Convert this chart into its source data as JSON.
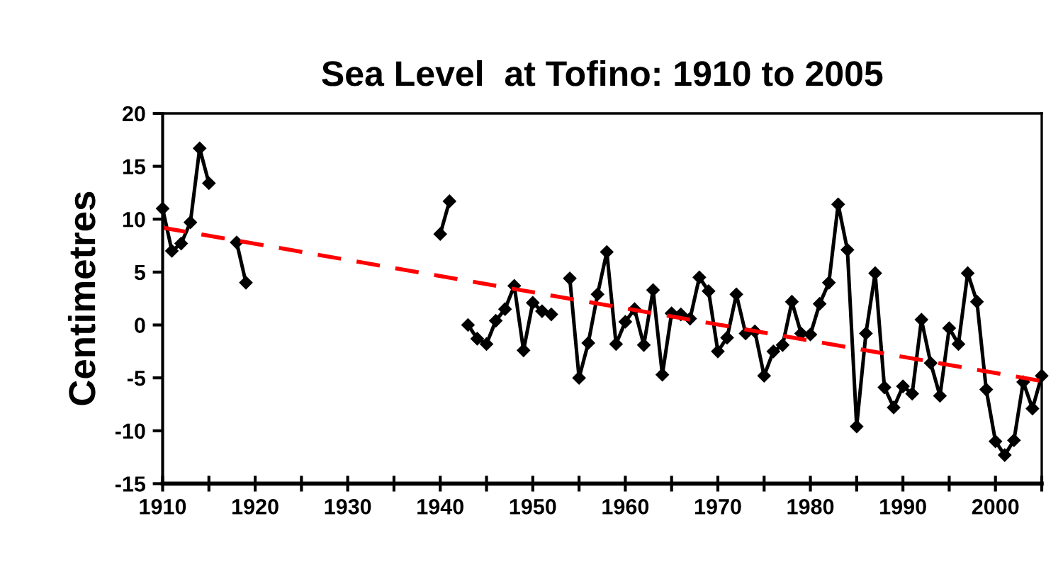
{
  "chart_data": {
    "type": "line",
    "title": "Sea Level  at Tofino: 1910 to 2005",
    "ylabel": "Centimetres",
    "series": [
      {
        "color": "#000000",
        "marker": "diamond",
        "line_style": "solid",
        "x": [
          1910,
          1911,
          1912,
          1913,
          1914,
          1915,
          1916,
          1917,
          1918,
          1919,
          1920,
          1921,
          1922,
          1923,
          1924,
          1925,
          1926,
          1927,
          1928,
          1929,
          1930,
          1931,
          1932,
          1933,
          1934,
          1935,
          1936,
          1937,
          1938,
          1939,
          1940,
          1941,
          1942,
          1943,
          1944,
          1945,
          1946,
          1947,
          1948,
          1949,
          1950,
          1951,
          1952,
          1953,
          1954,
          1955,
          1956,
          1957,
          1958,
          1959,
          1960,
          1961,
          1962,
          1963,
          1964,
          1965,
          1966,
          1967,
          1968,
          1969,
          1970,
          1971,
          1972,
          1973,
          1974,
          1975,
          1976,
          1977,
          1978,
          1979,
          1980,
          1981,
          1982,
          1983,
          1984,
          1985,
          1986,
          1987,
          1988,
          1989,
          1990,
          1991,
          1992,
          1993,
          1994,
          1995,
          1996,
          1997,
          1998,
          1999,
          2000,
          2001,
          2002,
          2003,
          2004,
          2005
        ],
        "values": [
          11,
          7,
          7.7,
          9.7,
          16.7,
          13.4,
          null,
          null,
          7.8,
          4,
          null,
          null,
          null,
          null,
          null,
          null,
          null,
          null,
          null,
          null,
          null,
          null,
          null,
          null,
          null,
          null,
          null,
          null,
          null,
          null,
          8.6,
          11.7,
          null,
          0,
          -1.3,
          -1.8,
          0.4,
          1.5,
          3.7,
          -2.4,
          2.1,
          1.3,
          1.0,
          null,
          4.4,
          -5.0,
          -1.7,
          2.9,
          6.9,
          -1.8,
          0.3,
          1.5,
          -1.9,
          3.3,
          -4.7,
          1.1,
          1.0,
          0.6,
          4.5,
          3.2,
          -2.5,
          -1.2,
          2.9,
          -0.8,
          -0.6,
          -4.8,
          -2.5,
          -1.9,
          2.2,
          -0.8,
          -0.9,
          2.0,
          4.0,
          11.4,
          7.1,
          -9.6,
          -0.8,
          4.9,
          -5.9,
          -7.8,
          -5.8,
          -6.5,
          0.5,
          -3.6,
          -6.7,
          -0.3,
          -1.8,
          4.9,
          2.2,
          -6.1,
          -11,
          -12.3,
          -10.9,
          -5.4,
          -7.9,
          -4.8
        ]
      },
      {
        "color": "#ff0000",
        "marker": "none",
        "line_style": "dashed",
        "x": [
          1910,
          2005
        ],
        "values": [
          9.2,
          -5.3
        ]
      }
    ],
    "xlim": [
      1910,
      2005
    ],
    "xticks": [
      1910,
      {
        "value": 1915,
        "label": null
      },
      1920,
      {
        "value": 1925,
        "label": null
      },
      1930,
      {
        "value": 1935,
        "label": null
      },
      1940,
      {
        "value": 1945,
        "label": null
      },
      1950,
      {
        "value": 1955,
        "label": null
      },
      1960,
      {
        "value": 1965,
        "label": null
      },
      1970,
      {
        "value": 1975,
        "label": null
      },
      1980,
      {
        "value": 1985,
        "label": null
      },
      1990,
      {
        "value": 1995,
        "label": null
      },
      2000,
      {
        "value": 2005,
        "label": null
      }
    ],
    "ylim": [
      -15,
      20
    ],
    "yticks": [
      -15,
      -10,
      -5,
      0,
      5,
      10,
      15,
      20
    ],
    "grid": false,
    "legend": false
  }
}
